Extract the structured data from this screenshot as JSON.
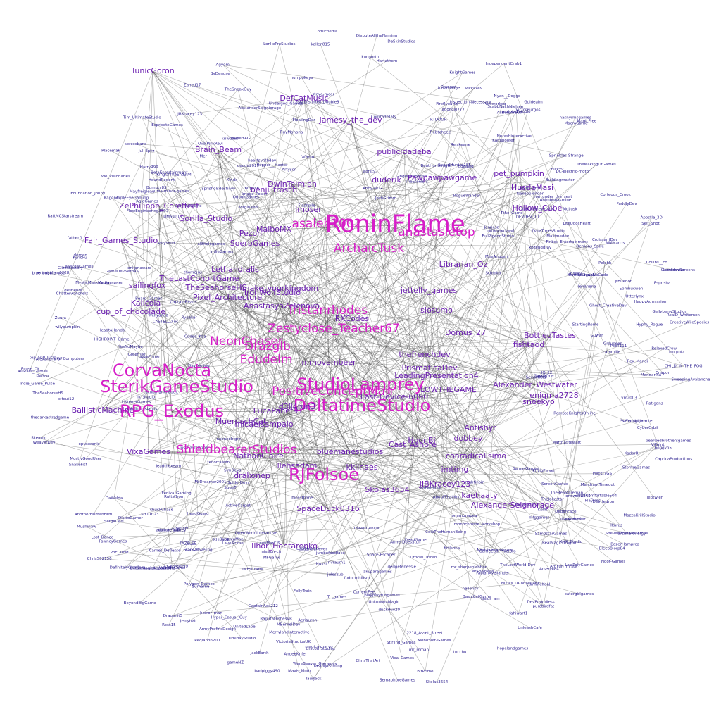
{
  "diagram": {
    "type": "network-graph",
    "background": "#ffffff",
    "colors": {
      "small_label": "#2b1f8f",
      "medium_label": "#6a1fb0",
      "large_label": "#d61ec8",
      "edge": "#3a3a3a"
    },
    "prominent_labels": [
      {
        "label": "RoninFlame",
        "tier": 5
      },
      {
        "label": "SterikGameStudio",
        "tier": 4
      },
      {
        "label": "RJFolsoe",
        "tier": 4
      },
      {
        "label": "CorvaNocta",
        "tier": 4
      },
      {
        "label": "RPG_Exodus",
        "tier": 4
      },
      {
        "label": "StudioLamprey",
        "tier": 4
      },
      {
        "label": "DeltatimeStudio",
        "tier": 4
      },
      {
        "label": "PositiveConceptMan",
        "tier": 3
      },
      {
        "label": "ArchaicTusk",
        "tier": 3
      },
      {
        "label": "Zestyclose_Teacher67",
        "tier": 3
      },
      {
        "label": "Edudelm",
        "tier": 3
      },
      {
        "label": "asaleh1002",
        "tier": 3
      },
      {
        "label": "anastasletop",
        "tier": 3
      },
      {
        "label": "Tristanrhodes",
        "tier": 3
      },
      {
        "label": "NeonChaser",
        "tier": 3
      },
      {
        "label": "Drazglb",
        "tier": 3
      },
      {
        "label": "ShieldbearerStudios",
        "tier": 3
      },
      {
        "label": "Last-Device-6090",
        "tier": 2
      },
      {
        "label": "cup_of_chocolade",
        "tier": 2
      },
      {
        "label": "jettelly_games",
        "tier": 2
      },
      {
        "label": "duderik",
        "tier": 2
      },
      {
        "label": "DefCatMusic",
        "tier": 2
      },
      {
        "label": "PrismaticaDev",
        "tier": 2
      },
      {
        "label": "LeadingPresentation4",
        "tier": 2
      },
      {
        "label": "Alexander_Westwater",
        "tier": 2
      },
      {
        "label": "sneekyo",
        "tier": 2
      },
      {
        "label": "enigma2728",
        "tier": 2
      },
      {
        "label": "Antishyr",
        "tier": 2
      },
      {
        "label": "conradicalisimo",
        "tier": 2
      },
      {
        "label": "bluemanestudios",
        "tier": 2
      },
      {
        "label": "Skolas3654",
        "tier": 2
      },
      {
        "label": "JJBKracey123",
        "tier": 2
      },
      {
        "label": "SpaceDuck0316",
        "tier": 2
      },
      {
        "label": "kkiinaes",
        "tier": 2
      },
      {
        "label": "llehsadam",
        "tier": 2
      },
      {
        "label": "d3ll4run3",
        "tier": 2
      },
      {
        "label": "LucaPanet91",
        "tier": 2
      },
      {
        "label": "Domus_27",
        "tier": 2
      },
      {
        "label": "Librarian_Oz",
        "tier": 2
      },
      {
        "label": "MalboMX",
        "tier": 2
      },
      {
        "label": "Pezon",
        "tier": 2
      },
      {
        "label": "mmovembeer",
        "tier": 2
      },
      {
        "label": "RXCodes",
        "tier": 2
      },
      {
        "label": "Brain_Beam",
        "tier": 2
      },
      {
        "label": "TunicGoron",
        "tier": 2
      },
      {
        "label": "VixaGames",
        "tier": 2
      },
      {
        "label": "NathanClaire",
        "tier": 2
      },
      {
        "label": "drakonep",
        "tier": 2
      },
      {
        "label": "kaetjaaty",
        "tier": 2
      },
      {
        "label": "AlexanderSeignorage",
        "tier": 2
      },
      {
        "label": "imtimg",
        "tier": 2
      },
      {
        "label": "dobbey",
        "tier": 2
      },
      {
        "label": "HoonBi",
        "tier": 2
      },
      {
        "label": "LOWTHEGAME",
        "tier": 2
      },
      {
        "label": "thefrenchdev",
        "tier": 2
      },
      {
        "label": "BottledTastes",
        "tier": 2
      },
      {
        "label": "fishtaod",
        "tier": 2
      },
      {
        "label": "Hollow_Cube",
        "tier": 2
      },
      {
        "label": "Pawpawpawgame",
        "tier": 2
      },
      {
        "label": "pet_pumpkin",
        "tier": 2
      },
      {
        "label": "HustleMasi",
        "tier": 2
      },
      {
        "label": "publicidadeba",
        "tier": 2
      },
      {
        "label": "Jamesy_the_dev",
        "tier": 2
      },
      {
        "label": "make_yourkingdom",
        "tier": 2
      },
      {
        "label": "AnastasyaZelenova",
        "tier": 2
      },
      {
        "label": "Pixel_Architecture",
        "tier": 2
      },
      {
        "label": "IronWolfStudio",
        "tier": 2
      },
      {
        "label": "Lethandralis",
        "tier": 2
      },
      {
        "label": "Fair_Games_Studio",
        "tier": 2
      },
      {
        "label": "sailingfox",
        "tier": 2
      },
      {
        "label": "MuerrischCat",
        "tier": 2
      },
      {
        "label": "SoerbGames",
        "tier": 2
      },
      {
        "label": "ZePhilippe_Coreffect",
        "tier": 2
      },
      {
        "label": "BallisticMachine",
        "tier": 2
      },
      {
        "label": "Kalicola",
        "tier": 2
      },
      {
        "label": "Gorilla_Studio",
        "tier": 2
      },
      {
        "label": "slosumo",
        "tier": 2
      },
      {
        "label": "jmoser",
        "tier": 2
      },
      {
        "label": "benji_trosch",
        "tier": 2
      },
      {
        "label": "DwinTeimion",
        "tier": 2
      },
      {
        "label": "Cast_Ashore",
        "tier": 2
      },
      {
        "label": "micaelsampaio",
        "tier": 2
      },
      {
        "label": "Ilhor_Hontarenko",
        "tier": 2
      },
      {
        "label": "TheSeahorseHS",
        "tier": 2
      },
      {
        "label": "TheLastCohortGame",
        "tier": 2
      }
    ],
    "minor_labels": [
      "CyberOrbit",
      "Collins__co",
      "FawncyGames",
      "ScabbNachNielsen",
      "RealMagicDragon",
      "ImNotGenius",
      "ScubaTankReddit",
      "jtBuenot",
      "mr_sharpeblabber",
      "fudocrchilism",
      "duckduo20",
      "OdoohGames",
      "kungorth",
      "Pelehk",
      "ChrisS32156",
      "GameCult_PixelBro",
      "LonlieProStudios",
      "deuda2019",
      "ActiveCarpet",
      "DaWelda",
      "PregucaMan",
      "DistroGamer",
      "ursa-minor-games",
      "ChrisThatArt",
      "FloatingDer",
      "n-sh-dl",
      "LowPolyGames",
      "worst97",
      "Indie_Game_Pulse",
      "bellaFi",
      "hellonsy",
      "BasicCatGame",
      "Ghost_CreativeDev",
      "Andy-NLG",
      "NastAwesomeness",
      "arcane-energy",
      "Hartathom",
      "RealD_Whitemen",
      "MysticMaskMedia",
      "SweepingAvalanche",
      "AngeeKrife",
      "MrSpezatus",
      "sisius_am",
      "juleszub",
      "dergen",
      "Demons_Spire",
      "GameDevNerd95",
      "TheSneakGuy",
      "RelaxedCrow",
      "magicalmarvo",
      "TheSteelers",
      "IndependentCrab1",
      "RagutaDishesVR",
      "CHILD_IN_THE_FOG",
      "ListenerGames",
      "hopelandgames",
      "Quintesents",
      "Image_Power",
      "FollyTrain",
      "bicestbone",
      "DEVDEV_10",
      "GingerNingerish",
      "EstablishmentDouble9",
      "Ebmbucwen",
      "Arsenal84",
      "FullPigeonStudio",
      "Kagonex",
      "top_500_lucio",
      "2218_Asset_Street",
      "fahiwart1",
      "KMK_Studio",
      "CaptainBeans",
      "numpokeys",
      "TripleEyeGaming",
      "Space-Escaper",
      "lonewolf2345_",
      "Khiba09",
      "Reqianon200",
      "fatherfl",
      "AllBetsAreOff",
      "TinyMonona",
      "opuseranis",
      "DeSkinStudios",
      "Tthe_Game",
      "Buildingmatter",
      "blue_bubble_bee",
      "Finbox-Entertainment",
      "WeaverDev",
      "Nakeoplendor",
      "SpiderDevs",
      "thedarkestredgame",
      "LiteUgosHeart",
      "Otterlynx",
      "Carnet_Deflesse",
      "CapricaProductions",
      "fafamo",
      "Unknown-Magic",
      "allthelogames",
      "hasnyrmsgames",
      "SpeedHunter185",
      "CroissantDev",
      "rivraum1",
      "CaptainAex212",
      "PoET111",
      "DevHedron",
      "Livi_TheGame",
      "ron_under_the_seat",
      "beardedbrothersgames",
      "ArnFuriThirsty",
      "Mushinaw",
      "Wellyanda",
      "BeatHuntKnight",
      "UnleashCafe",
      "HeadtoHands",
      "Hyphy_Rogue",
      "HIGHPOINT_Game",
      "HappyAdmission",
      "steve-racer",
      "ComradeTaty",
      "admiral_aubrey",
      "DevBoundless",
      "SimDevs",
      "Dafeer",
      "MythGame",
      "IMFSCrafts",
      "RogueWander",
      "LavelPrime",
      "SmithComfortable504",
      "playplayfungames",
      "MFGame",
      "CurrentFeet",
      "ButtonChinah",
      "TheSeahorseHS",
      "trotpotz",
      "mfggames",
      "DisputeAlltheNaming",
      "boggyb5",
      "OpenWorldInteractive",
      "BleepBlorp84",
      "Sevenfield",
      "Corteous_Crook",
      "onamonapea_",
      "Heckt7GS",
      "DeadGame",
      "Bumpty83",
      "badplggy490",
      "lenanena",
      "TheMakingOfGames",
      "refresherbwel",
      "Stark-traveling",
      "GamedevScreens",
      "Aeriauran",
      "TheLostWorld-Dev",
      "Artyson",
      "MonoSoft-Games",
      "BeforeRagnarssoni14",
      "Groupees",
      "Stt11023",
      "KingOfTheEnd374",
      "Skemdo",
      "Chatterwatchers",
      "mr_roman",
      "gameNZ",
      "dedgetenessle",
      "tenorrawen",
      "Mandarina",
      "IQ_22",
      "TL_games",
      "Apostle_3D",
      "Ironlimmer",
      "PoE_lucid",
      "ArmerDoesStuff",
      "Suffeonglibrante",
      "ShevelEmeraldGames",
      "Guidealm",
      "Fireflyearlie",
      "Fenika_Gaming",
      "ByDenuse",
      "Nyan__Doggo",
      "Jannesa",
      "jeremychau1228",
      "hyrpnaneyyuno",
      "Mavis_Moth",
      "AlbertAG",
      "UMaskUp",
      "Self_Shot",
      "We_Visionaries",
      "Lindsey",
      "JBazerHamprez",
      "AnothorHumanFirm",
      "MarchantTimeout",
      "OvalPinkRevi",
      "Ryoaker",
      "kriwdtail",
      "Mayfreigleau",
      "BitPrime",
      "Lost_Dance",
      "Zaned17",
      "Zuura",
      "Eriapon",
      "c0derthanever",
      "CashcowGames",
      "MagicFree",
      "DegenFace",
      "KadorR",
      "FlowEngineering3607",
      "Hyper_Casual_Guy",
      "ArmyPrefinsDesign",
      "Alexandra_07",
      "Ratigans",
      "PelyStuff",
      "nightinoin",
      "ilk_Studio",
      "Mer_",
      "destlendi",
      "MeeAngush",
      "cuminfelfaal",
      "Kinda",
      "Krtlshna",
      "Ross15",
      "Ruttarhom",
      "nickxv",
      "AgjaGames",
      "leadthexeam",
      "DayFeeling",
      "NeaganNoCode",
      "Jul_Epyz",
      "Nurashinteractive",
      "Tim_UltimateStudio",
      "Vixa_Games",
      "Nuxsil",
      "citcut12",
      "CyberMagicAppsStudio",
      "DefinitelyGiraffe",
      "VictoriaStudiosUK",
      "Maximedev",
      "RattMCStarstream",
      "FabianAVellander",
      "UnicornGame",
      "MacroGame",
      "HoundRodent",
      "Flashpile",
      "RTDOOR",
      "Polygon_Games",
      "Ahimbotjasmine",
      "MBernelDev",
      "Playtrec",
      "Asliuit_Islands",
      "Pickaxe9",
      "jumbofoodface",
      "dsawaddel",
      "RemoteKnightsOnline",
      "Mollusk",
      "TaurJack",
      "seconlinger",
      "mission-ctrl",
      "Official_Trican",
      "LevyMarCIS",
      "Kamaloofer",
      "monochrome_workshop",
      "Beard_Games",
      "Esprisha",
      "EspriseteGames",
      "Stirling_Games",
      "Sumaree",
      "heartsynthdev",
      "cammille",
      "protokollstudio",
      "lunarbadge",
      "LucidLevels",
      "ViPaint",
      "Skolas3654",
      "MMMarcis",
      "serecsband",
      "UnitedLabel",
      "AlexanderSeigniorage",
      "YesNoMaybe",
      "enigmaware",
      "TheJokestar",
      "JBKracey123",
      "StartingRome",
      "GlitchFactory",
      "Jeloyhair",
      "MostlyGoodUser",
      "CastleOne",
      "CASTELLOinc",
      "akuparagames",
      "gdeavid",
      "UnicornStudios",
      "vultureTank",
      "TheRealAcreman",
      "PaddlyDev",
      "JoshGrimm",
      "MerrylandInteractive",
      "Kyrioku",
      "GreenTie",
      "Tiebtwien",
      "Tiebtcheez",
      "MarthaStewart",
      "IndieGames",
      "Like_Computers",
      "Ecuse_Ok",
      "DeadlyGaming",
      "Undergod_Games",
      "tocchu",
      "VictorBurgos",
      "hitpush",
      "Agyom",
      "JackSci",
      "slonermike",
      "wilypumpkin",
      "SugeT",
      "Reiskeane",
      "Parkworksq",
      "ColeTheHumanBeing",
      "HarryR99",
      "WereBeaver_Gamedev",
      "MazzaKrillStudio",
      "Ray-Flower",
      "Kullu",
      "JustDavieBrine",
      "Ikarus",
      "iFoundation_Jonny",
      "BeyondBigGame",
      "AllStars_Games",
      "SnakeFist",
      "chuckChase",
      "Guwar",
      "HeadGuard",
      "KnightGames",
      "Orcogon",
      "PhyloPlayer",
      "sprisholsdestinyy",
      "Niklas_ITConsultant",
      "SergeDeis",
      "Coded_Kaa",
      "Noot-Games",
      "catergirlgames",
      "GellyberryStudios",
      "purebirdfat",
      "JazzePrime",
      "JackEarth",
      "Sprinkles-Strange",
      "BetaEntertainment",
      "Dragonit5",
      "UmidayStudio",
      "adolfojo777",
      "neoneobigro",
      "ScreenCactus",
      "Pepper__Master",
      "Schmidt",
      "TAZELEE",
      "Inspection-Necessary",
      "Rex_Mandi",
      "VirginRed",
      "DataTimesStudio",
      "kozendgray",
      "DC-electric-motor",
      "SampstarGames",
      "horror_man",
      "vm2003",
      "AboutThatYok",
      "MrDreamer2001",
      "thebrigger7",
      "CreativeWildSpecies",
      "Placemak",
      "Sama-Games",
      "kallen815",
      "SemaphoreGames",
      "Comicpedia",
      "CGeorges99",
      "thomejus",
      "StormeGames"
    ]
  }
}
